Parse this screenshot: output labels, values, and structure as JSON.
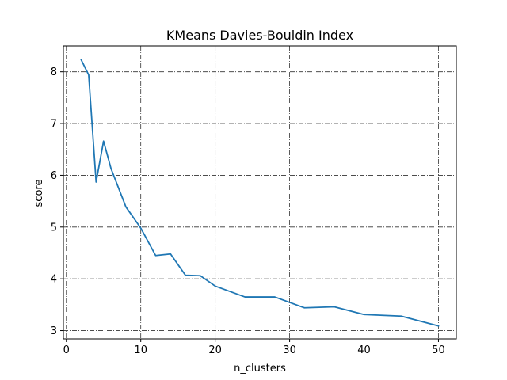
{
  "chart_data": {
    "type": "line",
    "title": "KMeans Davies-Bouldin Index",
    "xlabel": "n_clusters",
    "ylabel": "score",
    "xlim": [
      -0.4,
      52.4
    ],
    "ylim": [
      2.84,
      8.5
    ],
    "xticks": [
      0,
      10,
      20,
      30,
      40,
      50
    ],
    "yticks": [
      3,
      4,
      5,
      6,
      7,
      8
    ],
    "grid": true,
    "grid_style": "dashdot",
    "legend": "none",
    "series": [
      {
        "color": "#1f77b4",
        "x": [
          2,
          3,
          4,
          5,
          6,
          8,
          10,
          12,
          14,
          16,
          18,
          20,
          24,
          28,
          32,
          36,
          40,
          45,
          50
        ],
        "y": [
          8.23,
          7.94,
          5.87,
          6.66,
          6.13,
          5.39,
          4.98,
          4.45,
          4.48,
          4.07,
          4.06,
          3.86,
          3.65,
          3.65,
          3.44,
          3.46,
          3.31,
          3.28,
          3.09
        ]
      }
    ]
  }
}
